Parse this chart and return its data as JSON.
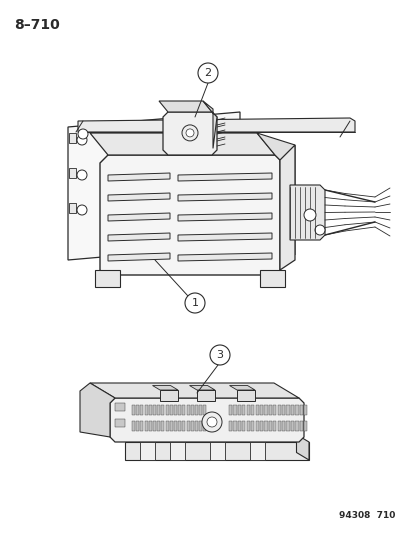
{
  "title_label": "8–710",
  "footer_text": "94308  710",
  "bg_color": "#ffffff",
  "line_color": "#2a2a2a",
  "text_color": "#2a2a2a",
  "fig_w": 4.14,
  "fig_h": 5.33,
  "dpi": 100
}
